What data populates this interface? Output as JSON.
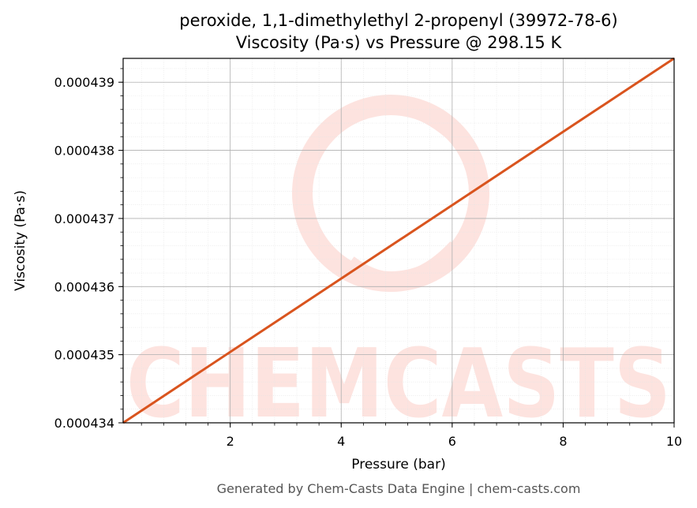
{
  "chart_data": {
    "type": "line",
    "title_line1": "peroxide, 1,1-dimethylethyl 2-propenyl (39972-78-6)",
    "title_line2": "Viscosity (Pa·s) vs Pressure @ 298.15 K",
    "xlabel": "Pressure (bar)",
    "ylabel": "Viscosity (Pa·s)",
    "xlim": [
      0.07,
      10
    ],
    "ylim": [
      0.000434,
      0.00043935
    ],
    "x_ticks": [
      2,
      4,
      6,
      8,
      10
    ],
    "x_tick_labels": [
      "2",
      "4",
      "6",
      "8",
      "10"
    ],
    "y_ticks": [
      0.000434,
      0.000435,
      0.000436,
      0.000437,
      0.000438,
      0.000439
    ],
    "y_tick_labels": [
      "0.000434",
      "0.000435",
      "0.000436",
      "0.000437",
      "0.000438",
      "0.000439"
    ],
    "grid": true,
    "series": [
      {
        "color": "#d9541e",
        "x": [
          0.07,
          10
        ],
        "y": [
          0.000434,
          0.00043935
        ]
      }
    ]
  },
  "watermark": {
    "text": "CHEMCASTS",
    "color": "#fde3df"
  },
  "footer": "Generated by Chem-Casts Data Engine | chem-casts.com"
}
